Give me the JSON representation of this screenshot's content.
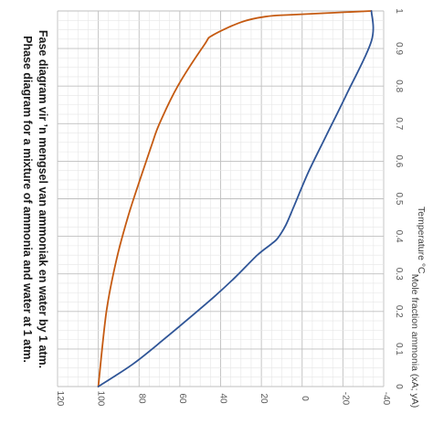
{
  "chart_data": {
    "type": "line",
    "title_lines": [
      "Phase diagram for a mixture of ammonia and water at 1 atm.",
      "Fase diagram vir ’n mengsel van ammoniak en water by 1 atm."
    ],
    "xlabel": "Temperature °C",
    "ylabel": "Mole fraction ammonia (xA; yA)",
    "xlim": [
      120,
      -40
    ],
    "ylim": [
      0,
      1
    ],
    "x_ticks": [
      "120",
      "100",
      "80",
      "60",
      "40",
      "20",
      "0",
      "-20",
      "-40"
    ],
    "y_ticks": [
      "0",
      "0.1",
      "0.2",
      "0.3",
      "0.4",
      "0.5",
      "0.6",
      "0.7",
      "0.8",
      "0.9",
      "1"
    ],
    "grid": true,
    "series": [
      {
        "color": "#c55a11",
        "points": [
          [
            100,
            0
          ],
          [
            96,
            0.2
          ],
          [
            91,
            0.34
          ],
          [
            85,
            0.46
          ],
          [
            79,
            0.56
          ],
          [
            74,
            0.64
          ],
          [
            70,
            0.7
          ],
          [
            61,
            0.8
          ],
          [
            48,
            0.91
          ],
          [
            44,
            0.935
          ],
          [
            30,
            0.97
          ],
          [
            18,
            0.985
          ],
          [
            5,
            0.99
          ],
          [
            -34,
            1.0
          ]
        ]
      },
      {
        "color": "#2f5597",
        "points": [
          [
            100,
            0
          ],
          [
            83,
            0.06
          ],
          [
            68,
            0.125
          ],
          [
            57,
            0.175
          ],
          [
            43,
            0.24
          ],
          [
            33,
            0.29
          ],
          [
            22,
            0.35
          ],
          [
            15,
            0.38
          ],
          [
            12,
            0.395
          ],
          [
            8,
            0.43
          ],
          [
            4,
            0.48
          ],
          [
            -3,
            0.57
          ],
          [
            -12,
            0.67
          ],
          [
            -22,
            0.78
          ],
          [
            -34,
            0.92
          ],
          [
            -34,
            1.0
          ]
        ]
      }
    ]
  }
}
